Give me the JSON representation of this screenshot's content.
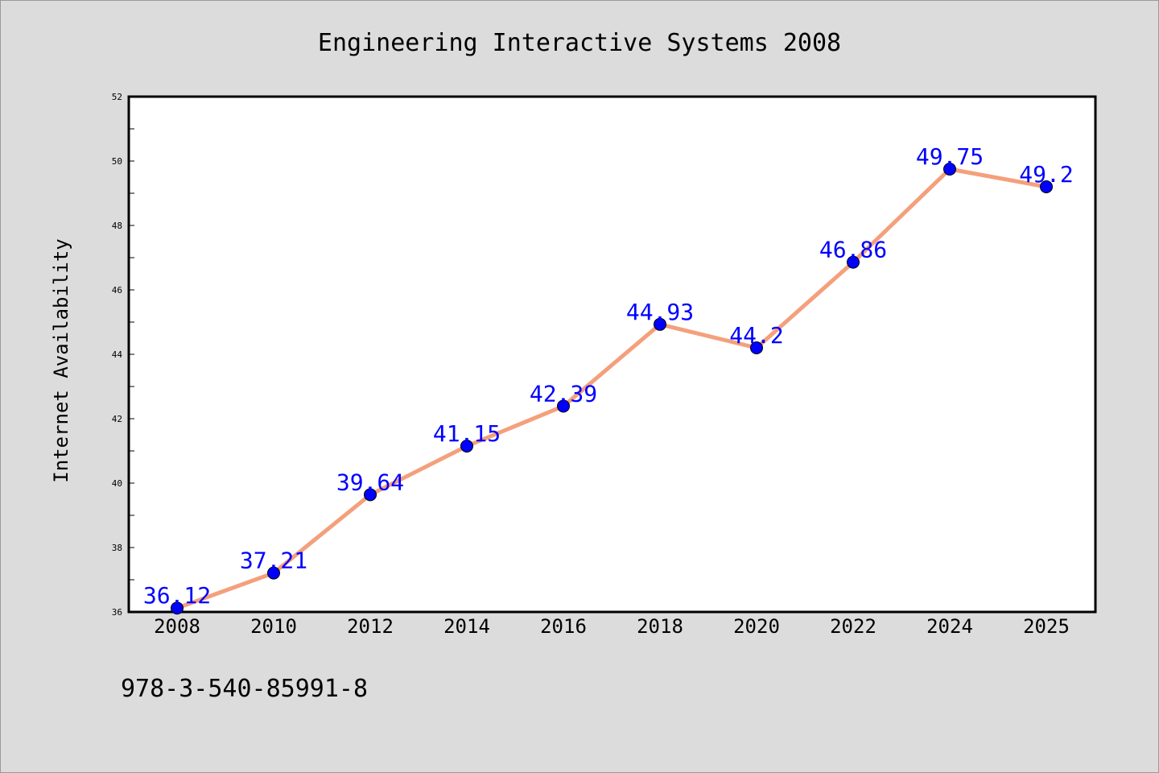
{
  "chart_data": {
    "type": "line",
    "title": "Engineering Interactive Systems 2008",
    "xlabel": "",
    "ylabel": "Internet Availability",
    "categories": [
      "2008",
      "2010",
      "2012",
      "2014",
      "2016",
      "2018",
      "2020",
      "2022",
      "2024",
      "2025"
    ],
    "series": [
      {
        "values": [
          36.12,
          37.21,
          39.64,
          41.15,
          42.39,
          44.93,
          44.2,
          46.86,
          49.75,
          49.2
        ],
        "labels": [
          "36.12",
          "37.21",
          "39.64",
          "41.15",
          "42.39",
          "44.93",
          "44.2",
          "46.86",
          "49.75",
          "49.2"
        ]
      }
    ],
    "ylim": [
      36,
      52
    ],
    "yticks": [
      "36",
      "38",
      "40",
      "42",
      "44",
      "46",
      "48",
      "50",
      "52"
    ],
    "grid": false,
    "legend": "none",
    "colors": {
      "line": "#f4a07c",
      "marker": "#0000ff",
      "data_label": "#0000ff",
      "plot_background": "#ffffff",
      "figure_background": "#dcdcdc"
    }
  },
  "footnote": "978-3-540-85991-8"
}
